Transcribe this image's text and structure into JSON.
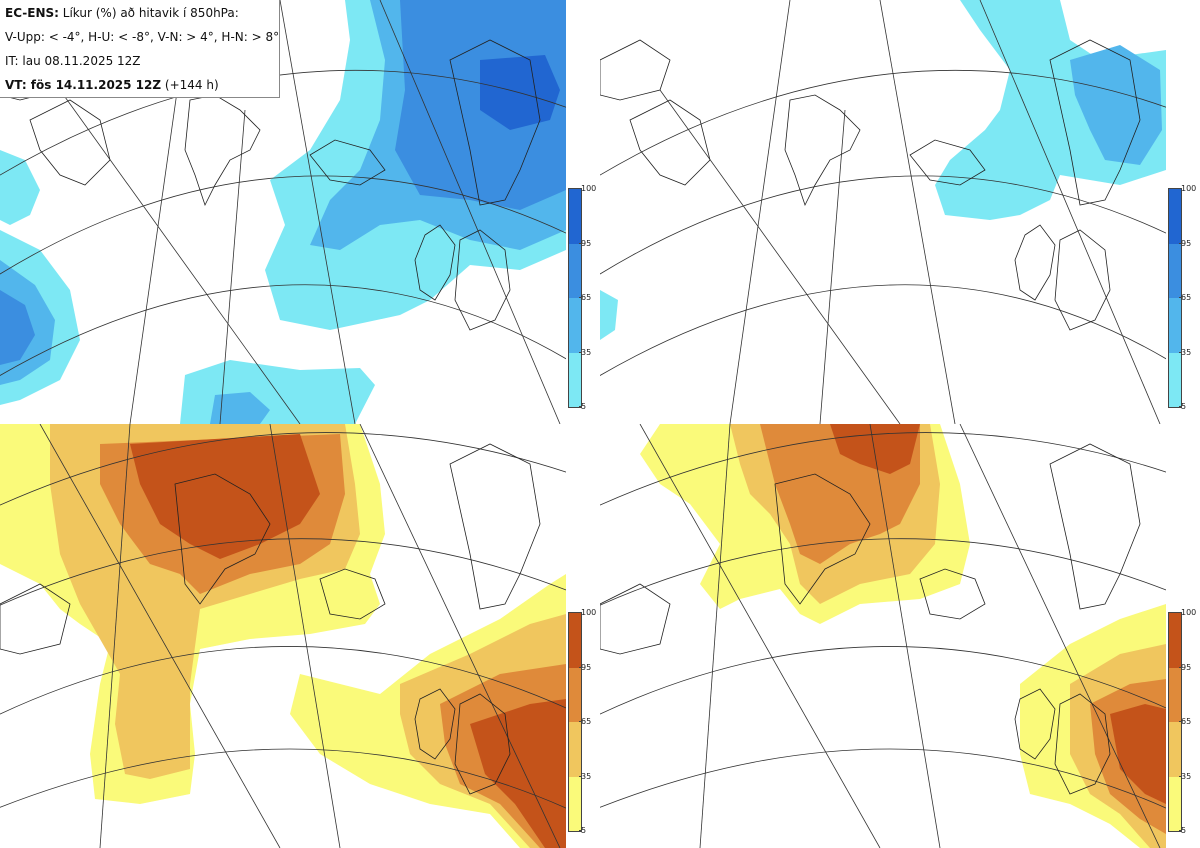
{
  "header": {
    "model": "EC-ENS:",
    "title": "Líkur (%) að hitavik í 850hPa:",
    "thresholds": "V-Upp: < -4°, H-U: < -8°, V-N: > 4°, H-N: > 8°",
    "init_time": "IT: lau 08.11.2025 12Z",
    "valid_label": "VT: fös 14.11.2025 12Z",
    "lead_time": "(+144 h)"
  },
  "colorbars": {
    "ticks": [
      "100",
      "95",
      "65",
      "35",
      "5"
    ],
    "cold_colors": [
      "#2166d1",
      "#3b8ee0",
      "#52b6ec",
      "#7de8f4"
    ],
    "warm_colors": [
      "#c4531a",
      "#df8a3a",
      "#f0c65e",
      "#fafa7a"
    ]
  },
  "panels": [
    {
      "id": "upper-left",
      "variable": "cold",
      "threshold_label": "V-Upp: < -4°"
    },
    {
      "id": "upper-right",
      "variable": "cold",
      "threshold_label": "H-U: < -8°"
    },
    {
      "id": "lower-left",
      "variable": "warm",
      "threshold_label": "V-N: > 4°"
    },
    {
      "id": "lower-right",
      "variable": "warm",
      "threshold_label": "H-N: > 8°"
    }
  ]
}
